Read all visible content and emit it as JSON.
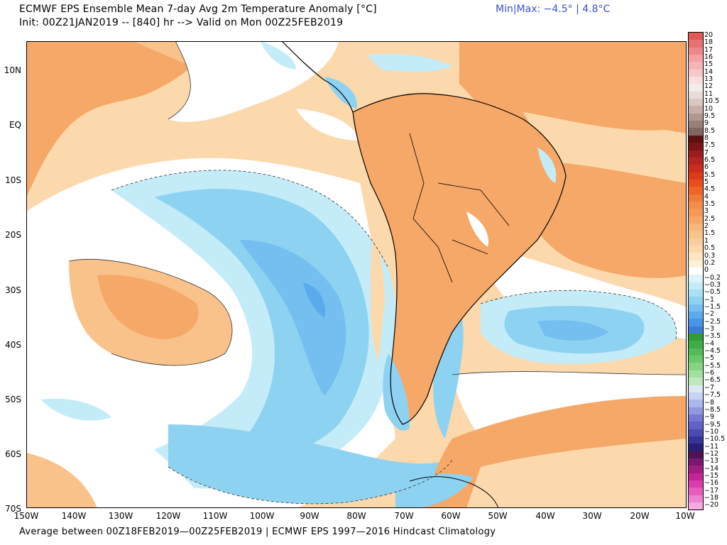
{
  "header": {
    "title_line1": "ECMWF EPS Ensemble Mean 7-day Avg 2m Temperature Anomaly [°C]",
    "title_line2": "Init: 00Z21JAN2019 -- [840] hr --> Valid on Mon 00Z25FEB2019",
    "minmax": "Min|Max: −4.5° | 4.8°C"
  },
  "footer": {
    "text": "Average between 00Z18FEB2019—00Z25FEB2019 | ECMWF EPS 1997—2016 Hindcast Climatology"
  },
  "map": {
    "lat_labels": [
      "10N",
      "EQ",
      "10S",
      "20S",
      "30S",
      "40S",
      "50S",
      "60S",
      "70S"
    ],
    "lon_labels": [
      "150W",
      "140W",
      "130W",
      "120W",
      "110W",
      "100W",
      "90W",
      "80W",
      "70W",
      "60W",
      "50W",
      "40W",
      "30W",
      "20W",
      "10W"
    ],
    "region": "South America / Southeast Pacific / South Atlantic"
  },
  "colorbar": {
    "labels": [
      "20",
      "18",
      "17",
      "16",
      "15",
      "14",
      "13",
      "12",
      "11",
      "10.5",
      "10",
      "9.5",
      "9",
      "8.5",
      "8",
      "7.5",
      "7",
      "6.5",
      "6",
      "5.5",
      "5",
      "4.5",
      "4",
      "3.5",
      "3",
      "2.5",
      "2",
      "1.5",
      "1",
      "0.5",
      "0.3",
      "0.2",
      "0",
      "−0.2",
      "−0.3",
      "−0.5",
      "−1",
      "−1.5",
      "−2",
      "−2.5",
      "−3",
      "−3.5",
      "−4",
      "−4.5",
      "−5",
      "−5.5",
      "−6",
      "−6.5",
      "−7",
      "−7.5",
      "−8",
      "−8.5",
      "−9",
      "−9.5",
      "−10",
      "−10.5",
      "−11",
      "−12",
      "−13",
      "−14",
      "−15",
      "−16",
      "−17",
      "−18",
      "−20"
    ],
    "colors": [
      "#e05a5a",
      "#e87070",
      "#ee8888",
      "#f2a0a0",
      "#f5b5b5",
      "#f7c8c8",
      "#f9dede",
      "#f3ecec",
      "#e8dcd8",
      "#d8c8c0",
      "#c8b0a8",
      "#b09890",
      "#988078",
      "#806860",
      "#5c1010",
      "#7a1515",
      "#9a1c1c",
      "#b82424",
      "#cc2c1e",
      "#dd3a18",
      "#e84e1c",
      "#ee6428",
      "#f07a38",
      "#f28c48",
      "#f49a58",
      "#f6a868",
      "#f8b67a",
      "#f9c28a",
      "#facd9a",
      "#fbd9ad",
      "#fce5c2",
      "#fdf0d8",
      "#ffffff",
      "#ddf3fa",
      "#c4ecf8",
      "#a8e0f4",
      "#8ed2f2",
      "#74bff0",
      "#5aaaec",
      "#4894e6",
      "#3a7ed8",
      "#2f9c36",
      "#3cae44",
      "#52bc58",
      "#6ac86c",
      "#84d484",
      "#a0e0a0",
      "#bfe8bf",
      "#dde8f6",
      "#c4d4f2",
      "#aab8ec",
      "#9098e0",
      "#7878d4",
      "#6262c4",
      "#4c4cb0",
      "#363698",
      "#282078",
      "#4c1454",
      "#7a1870",
      "#a21c86",
      "#c4249a",
      "#dc3ab0",
      "#e85cc0",
      "#f080d0",
      "#f6a8e0"
    ]
  },
  "colors": {
    "warm_light": "#fbd9ad",
    "warm_mid": "#f6a868",
    "neutral": "#ffffff",
    "cool_light": "#c4ecf8",
    "cool_mid": "#8ed2f2",
    "cool_dark": "#5aaaec",
    "title_accent": "#3a4fd0"
  }
}
